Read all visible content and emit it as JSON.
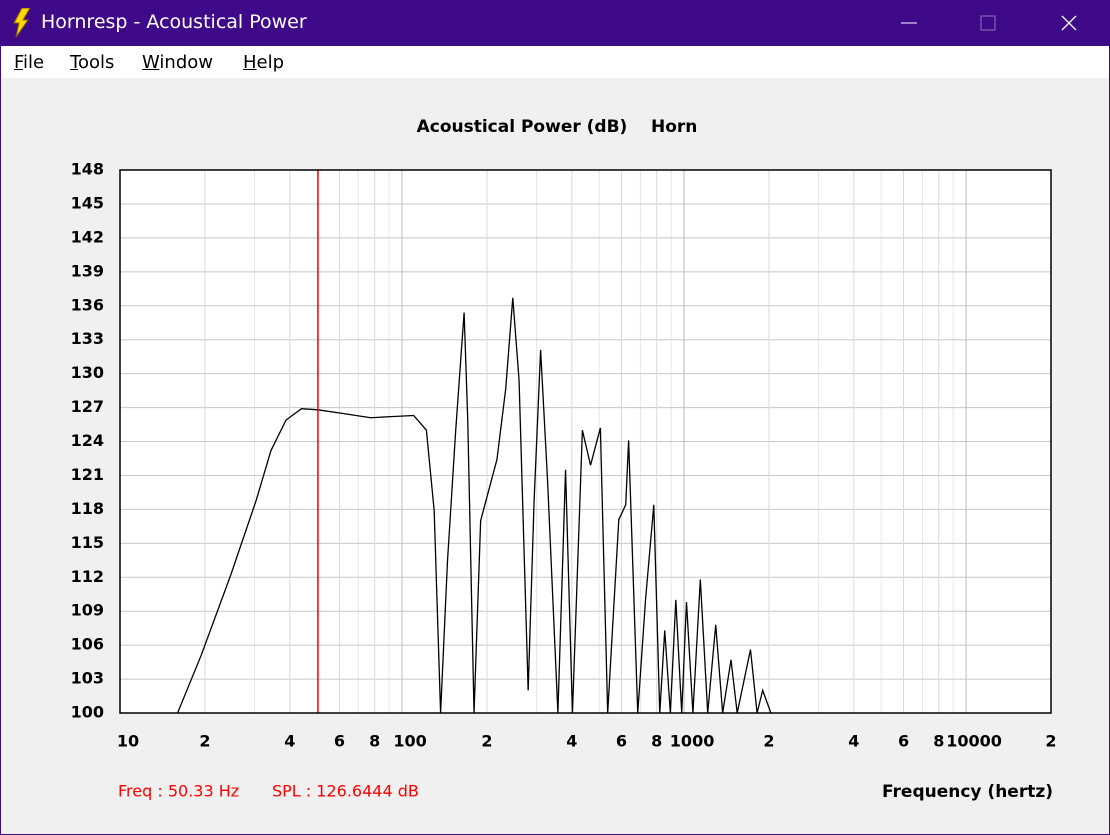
{
  "window": {
    "title": "Hornresp - Acoustical Power"
  },
  "menu": [
    "File",
    "Tools",
    "Window",
    "Help"
  ],
  "chart_data": {
    "type": "line",
    "title": "Acoustical Power (dB)    Horn",
    "x_label": "Frequency (hertz)",
    "x": [
      16,
      19.4,
      24.7,
      30.4,
      34.3,
      38.8,
      44,
      50.3,
      60.9,
      77.5,
      91.4,
      110,
      122,
      130,
      137,
      145,
      155,
      166,
      171,
      180,
      190,
      217,
      233,
      247,
      260,
      280,
      294,
      310,
      328,
      357,
      380,
      402,
      436,
      466,
      505,
      536,
      587,
      621,
      636,
      685,
      730,
      781,
      820,
      854,
      894,
      935,
      981,
      1020,
      1075,
      1142,
      1213,
      1295,
      1370,
      1467,
      1543,
      1720,
      1815,
      1900,
      2032
    ],
    "series": [
      {
        "name": "Horn",
        "color": "#000000",
        "values": [
          100,
          105.1,
          112.2,
          118.8,
          123.2,
          125.9,
          126.9,
          126.8,
          126.5,
          126.1,
          126.2,
          126.3,
          125,
          117.9,
          100,
          113.5,
          125,
          135.4,
          125.9,
          100,
          117,
          122.4,
          128.6,
          136.7,
          129.4,
          102,
          118.8,
          132.1,
          120.6,
          100,
          121.5,
          100,
          125,
          121.9,
          125.2,
          100,
          117.1,
          118.4,
          124.1,
          100,
          110,
          118.4,
          100,
          107.3,
          100,
          110,
          100,
          109.8,
          100,
          111.8,
          100,
          107.8,
          100,
          104.7,
          100,
          105.6,
          100,
          102,
          100
        ]
      }
    ],
    "log_x": true,
    "xlim": [
      10,
      20000
    ],
    "xticks": [
      10,
      {
        "value": 20,
        "label": "2"
      },
      {
        "value": 40,
        "label": "4"
      },
      {
        "value": 60,
        "label": "6"
      },
      {
        "value": 80,
        "label": "8"
      },
      100,
      {
        "value": 200,
        "label": "2"
      },
      {
        "value": 400,
        "label": "4"
      },
      {
        "value": 600,
        "label": "6"
      },
      {
        "value": 800,
        "label": "8"
      },
      1000,
      {
        "value": 2000,
        "label": "2"
      },
      {
        "value": 4000,
        "label": "4"
      },
      {
        "value": 6000,
        "label": "6"
      },
      {
        "value": 8000,
        "label": "8"
      },
      10000,
      {
        "value": 20000,
        "label": "2"
      }
    ],
    "ylim": [
      100,
      148
    ],
    "yticks": [
      100,
      103,
      106,
      109,
      112,
      115,
      118,
      121,
      124,
      127,
      130,
      133,
      136,
      139,
      142,
      145,
      148
    ],
    "grid": true,
    "cursor": {
      "x": 50.33,
      "color": "#ff0000"
    }
  },
  "status": {
    "freq": "Freq : 50.33 Hz",
    "spl": "SPL : 126.6444 dB"
  }
}
